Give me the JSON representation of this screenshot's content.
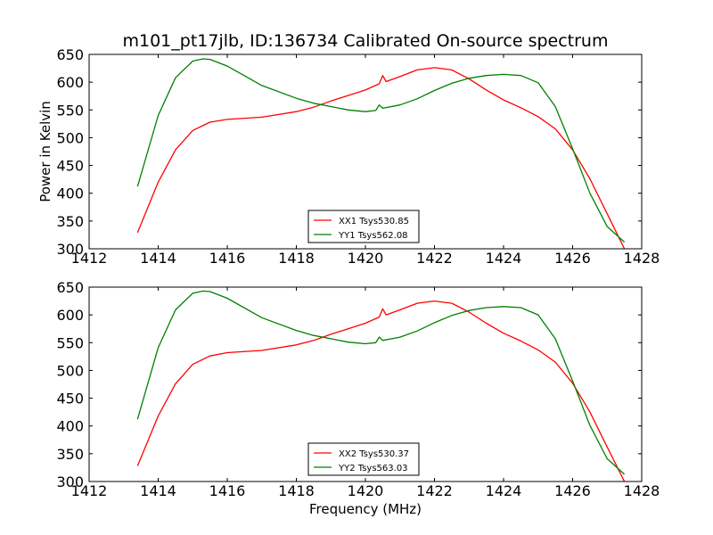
{
  "title": "m101_pt17jlb, ID:136734 Calibrated On-source spectrum",
  "colors": {
    "xx": "#ff0000",
    "yy": "#008000"
  },
  "chart_data": [
    {
      "type": "line",
      "ylabel": "Power in Kelvin",
      "xlabel": "",
      "xlim": [
        1412,
        1428
      ],
      "ylim": [
        300,
        650
      ],
      "xticks": [
        1412,
        1414,
        1416,
        1418,
        1420,
        1422,
        1424,
        1426,
        1428
      ],
      "yticks": [
        300,
        350,
        400,
        450,
        500,
        550,
        600,
        650
      ],
      "legend": "lower center",
      "series": [
        {
          "name": "XX1 Tsys530.85",
          "color": "#ff0000",
          "x": [
            1413.4,
            1414,
            1414.5,
            1415,
            1415.5,
            1416,
            1417,
            1418,
            1418.5,
            1419,
            1419.5,
            1420,
            1420.4,
            1420.5,
            1420.6,
            1421,
            1421.5,
            1422,
            1422.5,
            1423,
            1423.5,
            1424,
            1424.5,
            1425,
            1425.5,
            1426,
            1426.5,
            1427,
            1427.5
          ],
          "y": [
            329,
            420,
            478,
            513,
            528,
            533,
            537,
            547,
            555,
            566,
            576,
            586,
            597,
            612,
            601,
            610,
            622,
            626,
            622,
            606,
            586,
            568,
            554,
            538,
            516,
            478,
            426,
            363,
            300
          ]
        },
        {
          "name": "YY1 Tsys562.08",
          "color": "#008000",
          "x": [
            1413.4,
            1414,
            1414.5,
            1415,
            1415.3,
            1415.5,
            1416,
            1417,
            1418,
            1418.5,
            1419,
            1419.5,
            1420,
            1420.3,
            1420.4,
            1420.5,
            1421,
            1421.5,
            1422,
            1422.5,
            1423,
            1423.5,
            1424,
            1424.5,
            1425,
            1425.5,
            1426,
            1426.5,
            1427,
            1427.5
          ],
          "y": [
            412,
            540,
            608,
            638,
            642,
            641,
            629,
            594,
            571,
            562,
            556,
            550,
            547,
            549,
            559,
            553,
            559,
            570,
            585,
            598,
            607,
            612,
            614,
            612,
            599,
            556,
            480,
            400,
            340,
            312
          ]
        }
      ]
    },
    {
      "type": "line",
      "ylabel": "",
      "xlabel": "Frequency (MHz)",
      "xlim": [
        1412,
        1428
      ],
      "ylim": [
        300,
        650
      ],
      "xticks": [
        1412,
        1414,
        1416,
        1418,
        1420,
        1422,
        1424,
        1426,
        1428
      ],
      "yticks": [
        300,
        350,
        400,
        450,
        500,
        550,
        600,
        650
      ],
      "legend": "lower center",
      "series": [
        {
          "name": "XX2 Tsys530.37",
          "color": "#ff0000",
          "x": [
            1413.4,
            1414,
            1414.5,
            1415,
            1415.5,
            1416,
            1417,
            1418,
            1418.5,
            1419,
            1419.5,
            1420,
            1420.4,
            1420.5,
            1420.6,
            1421,
            1421.5,
            1422,
            1422.5,
            1423,
            1423.5,
            1424,
            1424.5,
            1425,
            1425.5,
            1426,
            1426.5,
            1427,
            1427.5
          ],
          "y": [
            328,
            418,
            476,
            511,
            526,
            532,
            536,
            546,
            554,
            565,
            575,
            585,
            596,
            611,
            600,
            609,
            621,
            625,
            621,
            605,
            585,
            567,
            553,
            537,
            515,
            477,
            425,
            362,
            300
          ]
        },
        {
          "name": "YY2 Tsys563.03",
          "color": "#008000",
          "x": [
            1413.4,
            1414,
            1414.5,
            1415,
            1415.3,
            1415.5,
            1416,
            1417,
            1418,
            1418.5,
            1419,
            1419.5,
            1420,
            1420.3,
            1420.4,
            1420.5,
            1421,
            1421.5,
            1422,
            1422.5,
            1423,
            1423.5,
            1424,
            1424.5,
            1425,
            1425.5,
            1426,
            1426.5,
            1427,
            1427.5
          ],
          "y": [
            412,
            541,
            609,
            639,
            643,
            642,
            630,
            595,
            572,
            563,
            557,
            551,
            548,
            550,
            560,
            554,
            560,
            571,
            586,
            599,
            608,
            613,
            615,
            613,
            600,
            557,
            481,
            401,
            341,
            313
          ]
        }
      ]
    }
  ]
}
